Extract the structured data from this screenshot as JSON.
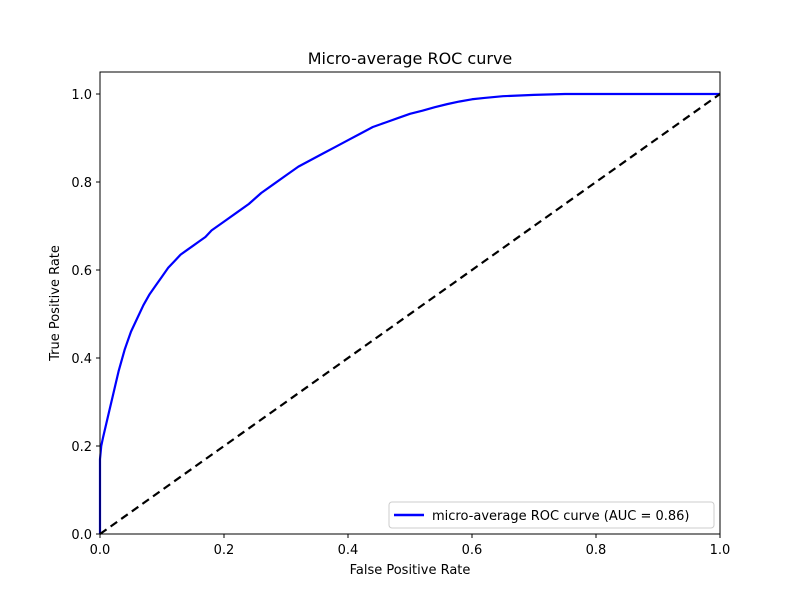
{
  "chart_data": {
    "type": "line",
    "title": "Micro-average ROC curve",
    "xlabel": "False Positive Rate",
    "ylabel": "True Positive Rate",
    "xlim": [
      0.0,
      1.0
    ],
    "ylim": [
      0.0,
      1.05
    ],
    "xticks": [
      0.0,
      0.2,
      0.4,
      0.6,
      0.8,
      1.0
    ],
    "yticks": [
      0.0,
      0.2,
      0.4,
      0.6,
      0.8,
      1.0
    ],
    "xtick_labels": [
      "0.0",
      "0.2",
      "0.4",
      "0.6",
      "0.8",
      "1.0"
    ],
    "ytick_labels": [
      "0.0",
      "0.2",
      "0.4",
      "0.6",
      "0.8",
      "1.0"
    ],
    "grid": false,
    "legend_position": "lower right",
    "series": [
      {
        "name": "micro-average ROC curve (AUC = 0.86)",
        "color": "#0000ff",
        "line_style": "solid",
        "x": [
          0.0,
          0.0,
          0.002,
          0.005,
          0.01,
          0.015,
          0.02,
          0.03,
          0.04,
          0.05,
          0.06,
          0.07,
          0.08,
          0.09,
          0.1,
          0.11,
          0.12,
          0.13,
          0.14,
          0.15,
          0.16,
          0.17,
          0.18,
          0.19,
          0.2,
          0.22,
          0.24,
          0.26,
          0.28,
          0.3,
          0.32,
          0.34,
          0.36,
          0.38,
          0.4,
          0.42,
          0.44,
          0.46,
          0.48,
          0.5,
          0.52,
          0.54,
          0.56,
          0.58,
          0.6,
          0.62,
          0.65,
          0.7,
          0.75,
          0.8,
          0.9,
          1.0
        ],
        "y": [
          0.0,
          0.17,
          0.2,
          0.22,
          0.25,
          0.28,
          0.31,
          0.37,
          0.42,
          0.46,
          0.49,
          0.52,
          0.545,
          0.565,
          0.585,
          0.605,
          0.62,
          0.635,
          0.645,
          0.655,
          0.665,
          0.675,
          0.69,
          0.7,
          0.71,
          0.73,
          0.75,
          0.775,
          0.795,
          0.815,
          0.835,
          0.85,
          0.865,
          0.88,
          0.895,
          0.91,
          0.925,
          0.935,
          0.945,
          0.955,
          0.962,
          0.97,
          0.977,
          0.983,
          0.988,
          0.991,
          0.995,
          0.998,
          1.0,
          1.0,
          1.0,
          1.0
        ]
      },
      {
        "color": "#000000",
        "line_style": "dashed",
        "x": [
          0.0,
          1.0
        ],
        "y": [
          0.0,
          1.0
        ]
      }
    ]
  }
}
